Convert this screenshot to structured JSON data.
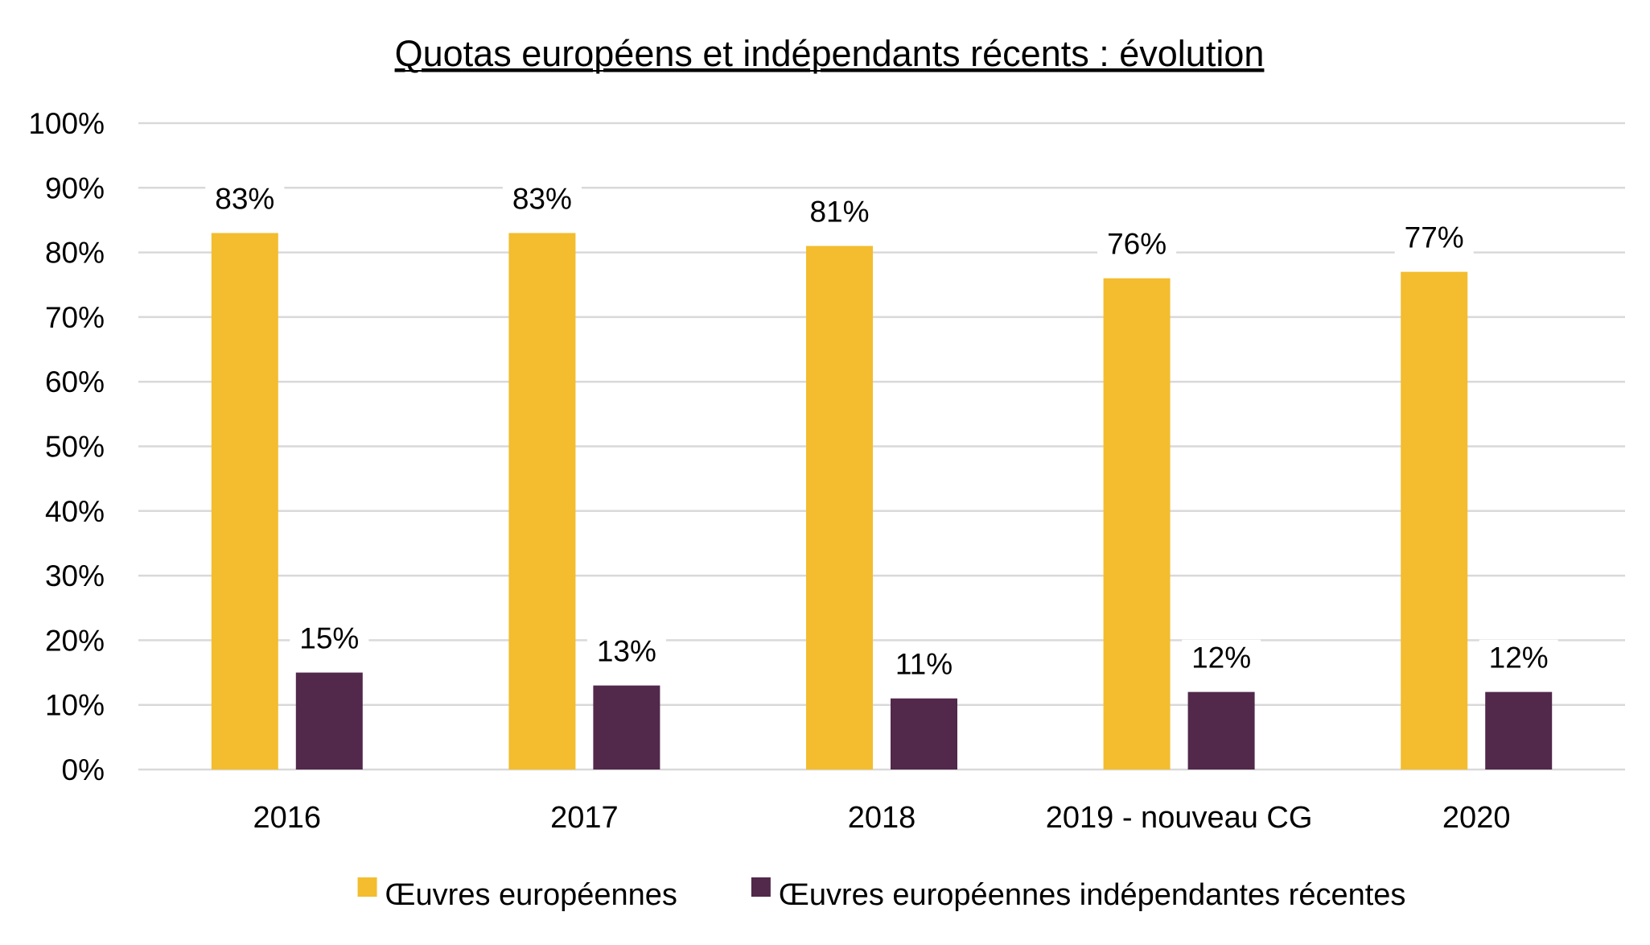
{
  "chart_data": {
    "type": "bar",
    "title": "Quotas européens et indépendants récents : évolution",
    "xlabel": "",
    "ylabel": "",
    "categories": [
      "2016",
      "2017",
      "2018",
      "2019 - nouveau CG",
      "2020"
    ],
    "series": [
      {
        "name": "Œuvres européennes",
        "color": "#F3BD2F",
        "values": [
          83,
          83,
          81,
          76,
          77
        ],
        "labels": [
          "83%",
          "83%",
          "81%",
          "76%",
          "77%"
        ]
      },
      {
        "name": "Œuvres européennes indépendantes récentes",
        "color": "#52284B",
        "values": [
          15,
          13,
          11,
          12,
          12
        ],
        "labels": [
          "15%",
          "13%",
          "11%",
          "12%",
          "12%"
        ]
      }
    ],
    "ylim": [
      0,
      100
    ],
    "yticks": [
      0,
      10,
      20,
      30,
      40,
      50,
      60,
      70,
      80,
      90,
      100
    ],
    "ytick_labels": [
      "0%",
      "10%",
      "20%",
      "30%",
      "40%",
      "50%",
      "60%",
      "70%",
      "80%",
      "90%",
      "100%"
    ],
    "grid": true,
    "legend_position": "bottom"
  }
}
